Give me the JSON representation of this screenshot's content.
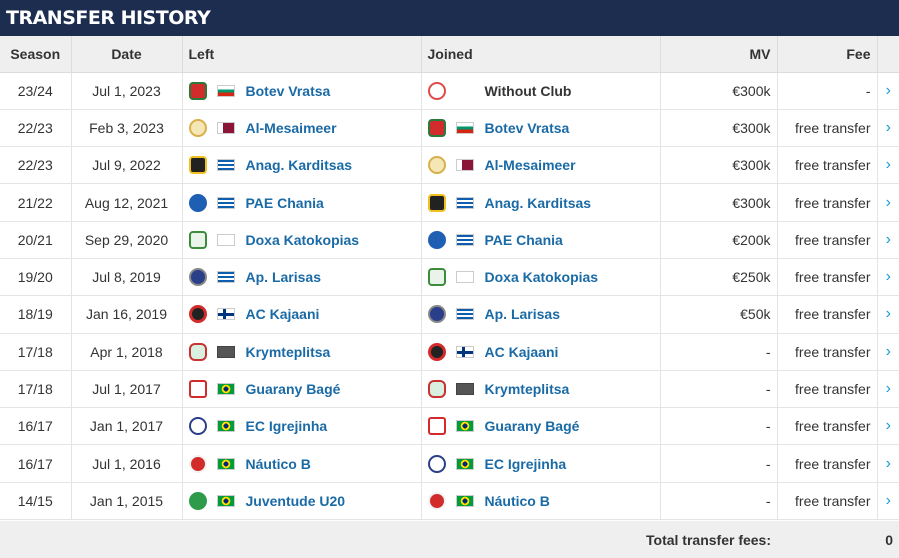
{
  "title": "TRANSFER HISTORY",
  "columns": {
    "season": "Season",
    "date": "Date",
    "left": "Left",
    "joined": "Joined",
    "mv": "MV",
    "fee": "Fee"
  },
  "rows": [
    {
      "season": "23/24",
      "date": "Jul 1, 2023",
      "left": {
        "name": "Botev Vratsa",
        "crest": "botev-crest",
        "flag": "bulgaria"
      },
      "joined": {
        "name": "Without Club",
        "crest": "no-club-icon",
        "flag": ""
      },
      "mv": "€300k",
      "fee": "-"
    },
    {
      "season": "22/23",
      "date": "Feb 3, 2023",
      "left": {
        "name": "Al-Mesaimeer",
        "crest": "mesaimeer-crest",
        "flag": "qatar"
      },
      "joined": {
        "name": "Botev Vratsa",
        "crest": "botev-crest",
        "flag": "bulgaria"
      },
      "mv": "€300k",
      "fee": "free transfer"
    },
    {
      "season": "22/23",
      "date": "Jul 9, 2022",
      "left": {
        "name": "Anag. Karditsas",
        "crest": "karditsas-crest",
        "flag": "greece"
      },
      "joined": {
        "name": "Al-Mesaimeer",
        "crest": "mesaimeer-crest",
        "flag": "qatar"
      },
      "mv": "€300k",
      "fee": "free transfer"
    },
    {
      "season": "21/22",
      "date": "Aug 12, 2021",
      "left": {
        "name": "PAE Chania",
        "crest": "chania-crest",
        "flag": "greece"
      },
      "joined": {
        "name": "Anag. Karditsas",
        "crest": "karditsas-crest",
        "flag": "greece"
      },
      "mv": "€300k",
      "fee": "free transfer"
    },
    {
      "season": "20/21",
      "date": "Sep 29, 2020",
      "left": {
        "name": "Doxa Katokopias",
        "crest": "doxa-crest",
        "flag": "cyprus"
      },
      "joined": {
        "name": "PAE Chania",
        "crest": "chania-crest",
        "flag": "greece"
      },
      "mv": "€200k",
      "fee": "free transfer"
    },
    {
      "season": "19/20",
      "date": "Jul 8, 2019",
      "left": {
        "name": "Ap. Larisas",
        "crest": "larisas-crest",
        "flag": "greece"
      },
      "joined": {
        "name": "Doxa Katokopias",
        "crest": "doxa-crest",
        "flag": "cyprus"
      },
      "mv": "€250k",
      "fee": "free transfer"
    },
    {
      "season": "18/19",
      "date": "Jan 16, 2019",
      "left": {
        "name": "AC Kajaani",
        "crest": "kajaani-crest",
        "flag": "finland"
      },
      "joined": {
        "name": "Ap. Larisas",
        "crest": "larisas-crest",
        "flag": "greece"
      },
      "mv": "€50k",
      "fee": "free transfer"
    },
    {
      "season": "17/18",
      "date": "Apr 1, 2018",
      "left": {
        "name": "Krymteplitsa",
        "crest": "krymteplitsa-crest",
        "flag": "unknown"
      },
      "joined": {
        "name": "AC Kajaani",
        "crest": "kajaani-crest",
        "flag": "finland"
      },
      "mv": "-",
      "fee": "free transfer"
    },
    {
      "season": "17/18",
      "date": "Jul 1, 2017",
      "left": {
        "name": "Guarany Bagé",
        "crest": "guarany-crest",
        "flag": "brazil"
      },
      "joined": {
        "name": "Krymteplitsa",
        "crest": "krymteplitsa-crest",
        "flag": "unknown"
      },
      "mv": "-",
      "fee": "free transfer"
    },
    {
      "season": "16/17",
      "date": "Jan 1, 2017",
      "left": {
        "name": "EC Igrejinha",
        "crest": "igrejinha-crest",
        "flag": "brazil"
      },
      "joined": {
        "name": "Guarany Bagé",
        "crest": "guarany-crest",
        "flag": "brazil"
      },
      "mv": "-",
      "fee": "free transfer"
    },
    {
      "season": "16/17",
      "date": "Jul 1, 2016",
      "left": {
        "name": "Náutico B",
        "crest": "nautico-crest",
        "flag": "brazil"
      },
      "joined": {
        "name": "EC Igrejinha",
        "crest": "igrejinha-crest",
        "flag": "brazil"
      },
      "mv": "-",
      "fee": "free transfer"
    },
    {
      "season": "14/15",
      "date": "Jan 1, 2015",
      "left": {
        "name": "Juventude U20",
        "crest": "juventude-crest",
        "flag": "brazil"
      },
      "joined": {
        "name": "Náutico B",
        "crest": "nautico-crest",
        "flag": "brazil"
      },
      "mv": "-",
      "fee": "free transfer"
    }
  ],
  "row_arrow": "›",
  "footer": {
    "label": "Total transfer fees:",
    "value": "0"
  },
  "colors": {
    "header_bg": "#1d2d50",
    "link": "#1a6aa6",
    "arrow": "#1a9bd7",
    "table_header_bg": "#efefef"
  }
}
